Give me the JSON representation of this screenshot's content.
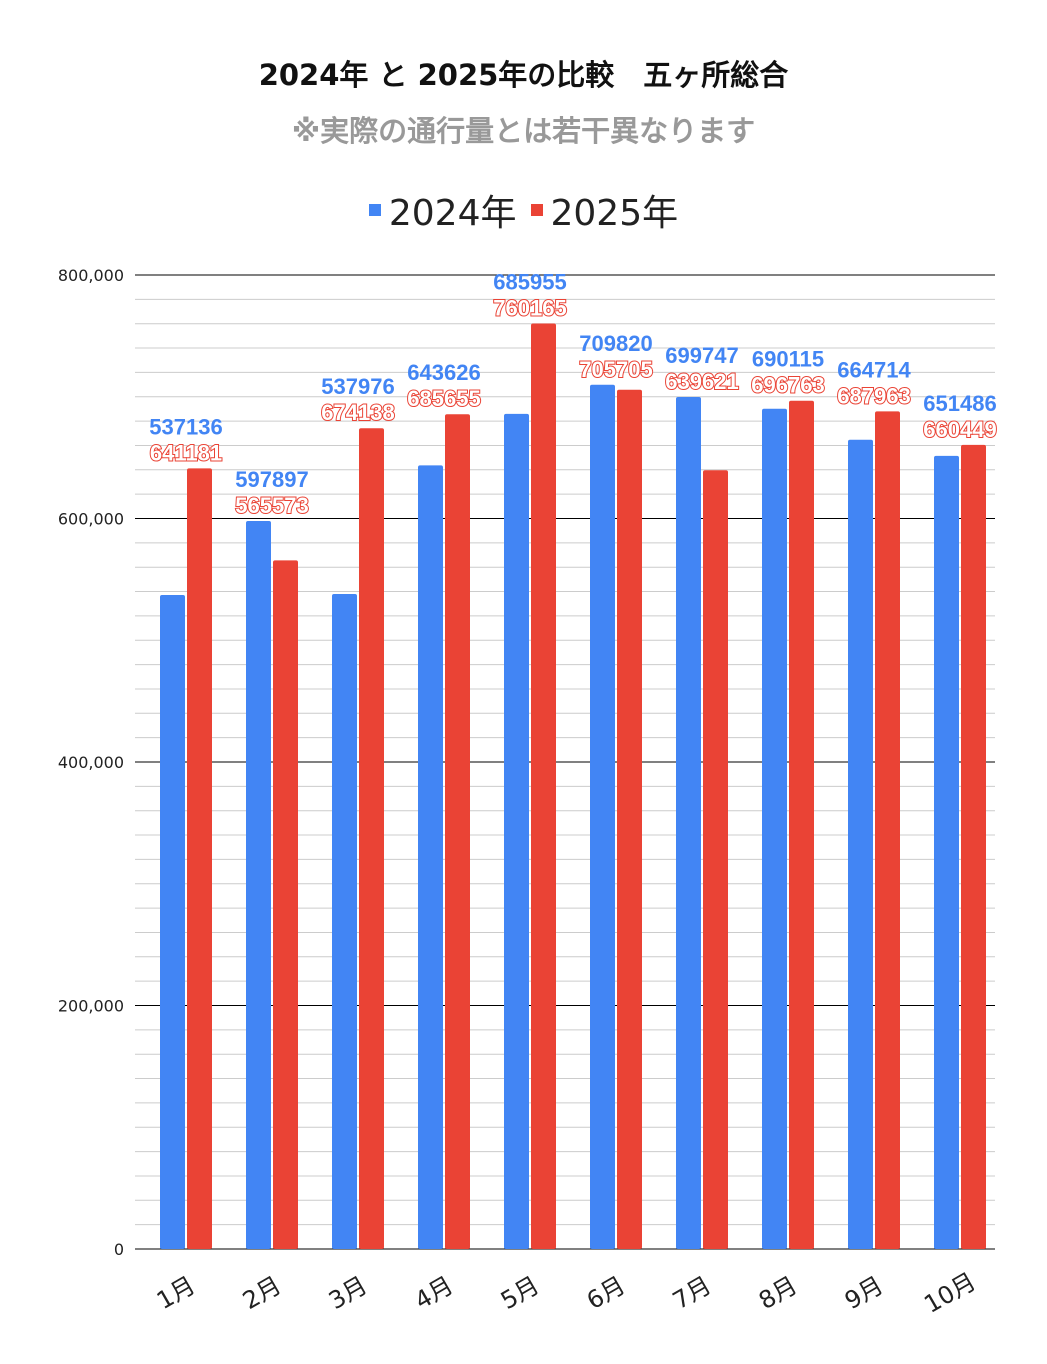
{
  "chart_data": {
    "type": "bar",
    "title": "2024年 と 2025年の比較　五ヶ所総合",
    "subtitle": "※実際の通行量とは若干異なります",
    "categories": [
      "1月",
      "2月",
      "3月",
      "4月",
      "5月",
      "6月",
      "7月",
      "8月",
      "9月",
      "10月"
    ],
    "series": [
      {
        "name": "2024年",
        "color": "#4285f4",
        "values": [
          537136,
          597897,
          537976,
          643626,
          685955,
          709820,
          699747,
          690115,
          664714,
          651486
        ]
      },
      {
        "name": "2025年",
        "color": "#ea4335",
        "values": [
          641181,
          565573,
          674138,
          685655,
          760165,
          705705,
          639621,
          696763,
          687963,
          660449
        ]
      }
    ],
    "ylim": [
      0,
      800000
    ],
    "yticks": [
      0,
      200000,
      400000,
      600000,
      800000
    ],
    "ytick_labels": [
      "0",
      "200,000",
      "400,000",
      "600,000",
      "800,000"
    ],
    "grid": true,
    "legend": "top-center",
    "xlabel": "",
    "ylabel": ""
  }
}
